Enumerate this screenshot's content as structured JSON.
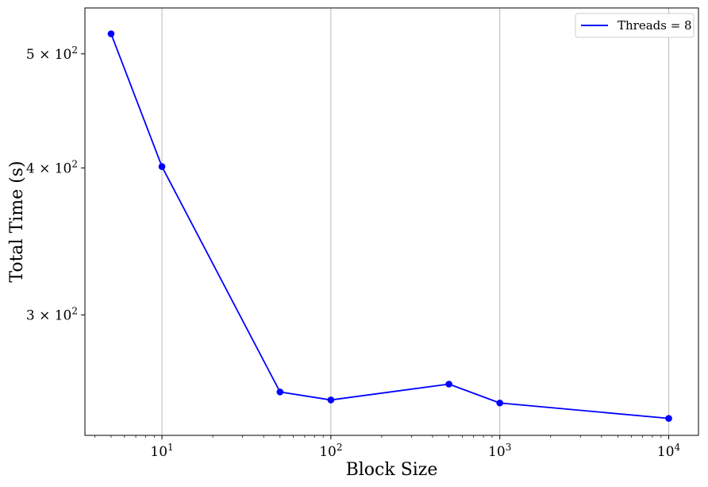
{
  "chart_data": {
    "type": "line",
    "title": "",
    "xlabel": "Block Size",
    "ylabel": "Total Time (s)",
    "xscale": "log",
    "yscale": "log",
    "xlim": [
      3.5,
      15000
    ],
    "ylim": [
      237,
      547
    ],
    "grid": "x-major",
    "legend_position": "top-right",
    "colors": {
      "series": "#0000ff",
      "grid": "#b0b0b0",
      "axes": "#000000"
    },
    "x_ticks": [
      {
        "value": 10,
        "base": "10",
        "exp": "1"
      },
      {
        "value": 100,
        "base": "10",
        "exp": "2"
      },
      {
        "value": 1000,
        "base": "10",
        "exp": "3"
      },
      {
        "value": 10000,
        "base": "10",
        "exp": "4"
      }
    ],
    "y_ticks": [
      {
        "value": 300,
        "mant": "3",
        "base": "10",
        "exp": "2"
      },
      {
        "value": 400,
        "mant": "4",
        "base": "10",
        "exp": "2"
      },
      {
        "value": 500,
        "mant": "5",
        "base": "10",
        "exp": "2"
      }
    ],
    "series": [
      {
        "name": "Threads = 8",
        "x": [
          5,
          10,
          50,
          100,
          500,
          1000,
          10000
        ],
        "y": [
          520,
          401,
          258,
          254,
          262,
          252.5,
          245
        ]
      }
    ]
  }
}
